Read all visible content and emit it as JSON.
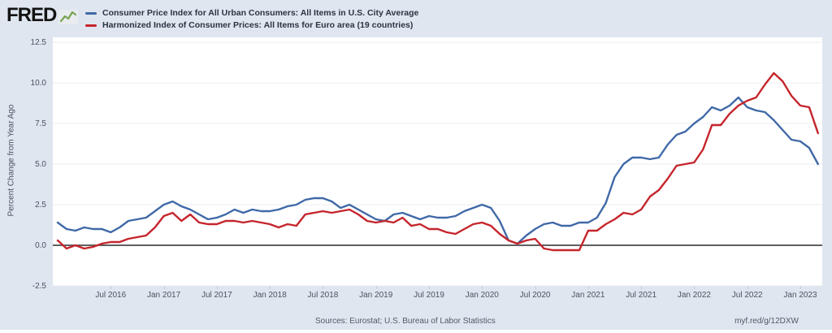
{
  "header": {
    "logo": "FRED",
    "logo_icon": "sparkline-chart-icon",
    "logo_icon_color": "#6f9c3f"
  },
  "footer": {
    "sources": "Sources: Eurostat; U.S. Bureau of Labor Statistics",
    "link": "myf.red/g/12DXW"
  },
  "chart_data": {
    "type": "line",
    "title": "",
    "ylabel": "Percent Change from Year Ago",
    "ylim": [
      -2.5,
      12.8
    ],
    "yticks": [
      12.5,
      10.0,
      7.5,
      5.0,
      2.5,
      0.0,
      -2.5
    ],
    "grid": "horizontal-only",
    "zero_line": true,
    "zero_line_color": "#4a4a4a",
    "gridline_color": "#ededf1",
    "plot_background": "#ffffff",
    "page_background": "#dfe6ef",
    "legend_position": "top-left",
    "frequency": "monthly",
    "xtick_labels": [
      "Jul 2016",
      "Jan 2017",
      "Jul 2017",
      "Jan 2018",
      "Jul 2018",
      "Jan 2019",
      "Jul 2019",
      "Jan 2020",
      "Jul 2020",
      "Jan 2021",
      "Jul 2021",
      "Jan 2022",
      "Jul 2022",
      "Jan 2023"
    ],
    "xtick_month_indices": [
      6,
      12,
      18,
      24,
      30,
      36,
      42,
      48,
      54,
      60,
      66,
      72,
      78,
      84
    ],
    "months": [
      "2016-01",
      "2016-02",
      "2016-03",
      "2016-04",
      "2016-05",
      "2016-06",
      "2016-07",
      "2016-08",
      "2016-09",
      "2016-10",
      "2016-11",
      "2016-12",
      "2017-01",
      "2017-02",
      "2017-03",
      "2017-04",
      "2017-05",
      "2017-06",
      "2017-07",
      "2017-08",
      "2017-09",
      "2017-10",
      "2017-11",
      "2017-12",
      "2018-01",
      "2018-02",
      "2018-03",
      "2018-04",
      "2018-05",
      "2018-06",
      "2018-07",
      "2018-08",
      "2018-09",
      "2018-10",
      "2018-11",
      "2018-12",
      "2019-01",
      "2019-02",
      "2019-03",
      "2019-04",
      "2019-05",
      "2019-06",
      "2019-07",
      "2019-08",
      "2019-09",
      "2019-10",
      "2019-11",
      "2019-12",
      "2020-01",
      "2020-02",
      "2020-03",
      "2020-04",
      "2020-05",
      "2020-06",
      "2020-07",
      "2020-08",
      "2020-09",
      "2020-10",
      "2020-11",
      "2020-12",
      "2021-01",
      "2021-02",
      "2021-03",
      "2021-04",
      "2021-05",
      "2021-06",
      "2021-07",
      "2021-08",
      "2021-09",
      "2021-10",
      "2021-11",
      "2021-12",
      "2022-01",
      "2022-02",
      "2022-03",
      "2022-04",
      "2022-05",
      "2022-06",
      "2022-07",
      "2022-08",
      "2022-09",
      "2022-10",
      "2022-11",
      "2022-12",
      "2023-01",
      "2023-02",
      "2023-03"
    ],
    "series": [
      {
        "name": "Consumer Price Index for All Urban Consumers: All Items in U.S. City Average",
        "color": "#4069a7",
        "values": [
          1.4,
          1.0,
          0.9,
          1.1,
          1.0,
          1.0,
          0.8,
          1.1,
          1.5,
          1.6,
          1.7,
          2.1,
          2.5,
          2.7,
          2.4,
          2.2,
          1.9,
          1.6,
          1.7,
          1.9,
          2.2,
          2.0,
          2.2,
          2.1,
          2.1,
          2.2,
          2.4,
          2.5,
          2.8,
          2.9,
          2.9,
          2.7,
          2.3,
          2.5,
          2.2,
          1.9,
          1.6,
          1.5,
          1.9,
          2.0,
          1.8,
          1.6,
          1.8,
          1.7,
          1.7,
          1.8,
          2.1,
          2.3,
          2.5,
          2.3,
          1.5,
          0.3,
          0.1,
          0.6,
          1.0,
          1.3,
          1.4,
          1.2,
          1.2,
          1.4,
          1.4,
          1.7,
          2.6,
          4.2,
          5.0,
          5.4,
          5.4,
          5.3,
          5.4,
          6.2,
          6.8,
          7.0,
          7.5,
          7.9,
          8.5,
          8.3,
          8.6,
          9.1,
          8.5,
          8.3,
          8.2,
          7.7,
          7.1,
          6.5,
          6.4,
          6.0,
          5.0
        ]
      },
      {
        "name": "Harmonized Index of Consumer Prices: All Items for Euro area (19 countries)",
        "color": "#c5252c",
        "values": [
          0.3,
          -0.2,
          0.0,
          -0.2,
          -0.1,
          0.1,
          0.2,
          0.2,
          0.4,
          0.5,
          0.6,
          1.1,
          1.8,
          2.0,
          1.5,
          1.9,
          1.4,
          1.3,
          1.3,
          1.5,
          1.5,
          1.4,
          1.5,
          1.4,
          1.3,
          1.1,
          1.3,
          1.2,
          1.9,
          2.0,
          2.1,
          2.0,
          2.1,
          2.2,
          1.9,
          1.5,
          1.4,
          1.5,
          1.4,
          1.7,
          1.2,
          1.3,
          1.0,
          1.0,
          0.8,
          0.7,
          1.0,
          1.3,
          1.4,
          1.2,
          0.7,
          0.3,
          0.1,
          0.3,
          0.4,
          -0.2,
          -0.3,
          -0.3,
          -0.3,
          -0.3,
          0.9,
          0.9,
          1.3,
          1.6,
          2.0,
          1.9,
          2.2,
          3.0,
          3.4,
          4.1,
          4.9,
          5.0,
          5.1,
          5.9,
          7.4,
          7.4,
          8.1,
          8.6,
          8.9,
          9.1,
          9.9,
          10.6,
          10.1,
          9.2,
          8.6,
          8.5,
          6.9
        ]
      }
    ]
  }
}
